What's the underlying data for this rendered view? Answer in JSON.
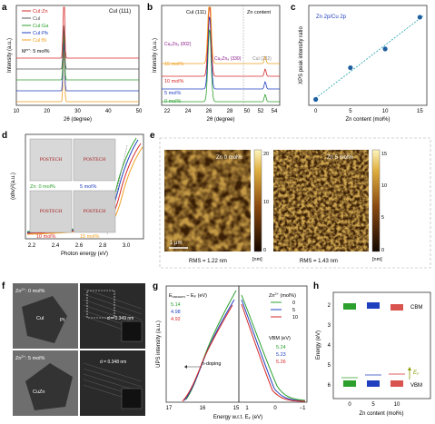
{
  "panel_labels": [
    "a",
    "b",
    "c",
    "d",
    "e",
    "f",
    "g",
    "h"
  ],
  "colors": {
    "zn": "#d62728",
    "cui": "#555555",
    "ga": "#2ca02c",
    "pb": "#1f3fbf",
    "bi": "#f0a020",
    "zero": "#2ca02c",
    "five": "#1f3fbf",
    "ten": "#d62728",
    "fifteen": "#f0a020",
    "afm_dark": "#1a0d00",
    "afm_light": "#f5e6a0",
    "cbm": "#d9534f",
    "vbm": "#d9534f",
    "teal": "#22a0b0"
  },
  "a": {
    "legend": [
      "CuI:Zn",
      "CuI",
      "CuI:Ga",
      "CuI:Pb",
      "CuI:Bi"
    ],
    "note": "M",
    "note_sup": "n+",
    "note_tail": ": 5 mol%",
    "peak_label": "CuI (111)",
    "ylabel": "Intensity (a.u.)",
    "xlabel": "2θ (degree)",
    "xticks": [
      "10",
      "20",
      "30",
      "40",
      "50"
    ]
  },
  "b": {
    "peak_label": "CuI (111)",
    "zn_content": "Zn content",
    "peak_cuzn_a": "Cu₅Zn₈ (002)",
    "peak_cuzn_b": "Cu₅Zn₈ (330)",
    "peak_222": "CuI (222)",
    "series": [
      "15 mol%",
      "10 mol%",
      "5 mol%",
      "0 mol%"
    ],
    "ylabel": "Intensity (a.u.)",
    "xlabel": "2θ (degree)",
    "xticks": [
      "22",
      "24",
      "26",
      "28",
      "50",
      "52",
      "54"
    ]
  },
  "c": {
    "title": "Zn 2p/Cu 2p",
    "ylabel": "XPS peak intensity ratio",
    "xlabel": "Zn content (mol%)",
    "xticks": [
      "0",
      "5",
      "10",
      "15"
    ]
  },
  "chart_data": [
    {
      "type": "scatter",
      "x": [
        0,
        5,
        10,
        15
      ],
      "y": [
        0.0,
        0.27,
        0.43,
        0.7
      ],
      "xlabel": "Zn content (mol%)",
      "ylabel": "XPS peak intensity ratio",
      "xlim": [
        -1,
        16
      ],
      "ylim": [
        -0.05,
        0.8
      ]
    }
  ],
  "d": {
    "ylabel": "(αhν)²",
    "ylabel_unit": "(a.u.)",
    "xlabel": "Photon energy (eV)",
    "xticks": [
      "2.2",
      "2.4",
      "2.6",
      "2.8",
      "3.0"
    ],
    "logo": "POSTECH",
    "zn0": "Zn: 0 mol%",
    "zn5": "5 mol%",
    "zn10": "10 mol%",
    "zn15": "15 mol%"
  },
  "e": {
    "left_title": "Zn 0 mol%",
    "right_title": "Zn 5 mol%",
    "left_rms": "RMS = 1.22 nm",
    "right_rms": "RMS = 1.43 nm",
    "scale": "1 μm",
    "left_cb": [
      "20",
      "10",
      "0"
    ],
    "right_cb": [
      "15",
      "10",
      "5",
      "0"
    ],
    "unit": "[nm]"
  },
  "f": {
    "top_label": "Zn",
    "top_sup": "2+",
    "top_tail": ": 0 mol%",
    "bottom_label": "Zn",
    "bottom_sup": "2+",
    "bottom_tail": ": 5 mol%",
    "cui": "CuI",
    "pt": "Pt",
    "cuzn": "CuZn",
    "d1": "d = 0.349 nm",
    "d2": "d = 0.348 nm"
  },
  "g": {
    "ylabel": "UPS intensity (a.u.)",
    "xlabel": "Energy w.r.t. E",
    "xlabel_sub": "F",
    "xlabel_tail": " (eV)",
    "evac_label": "E",
    "evac_tail": " − E",
    "evac_unit": " (eV)",
    "vac_vals": [
      "5.14",
      "4.98",
      "4.92"
    ],
    "vbm": "VBM (eV)",
    "vbm_vals": [
      "5.24",
      "5.23",
      "5.26"
    ],
    "zn_legend": "Zn",
    "zn_sup": "2+",
    "zn_tail": " (mol%)",
    "series": [
      "0",
      "5",
      "10"
    ],
    "ndoping": "n-doping",
    "xticks_left": [
      "17",
      "16",
      "15"
    ],
    "xticks_right": [
      "1",
      "0",
      "−1"
    ]
  },
  "h": {
    "ylabel": "Energy (eV)",
    "xlabel": "Zn content (mol%)",
    "yticks": [
      "2",
      "3",
      "4",
      "5",
      "6"
    ],
    "xticks": [
      "0",
      "5",
      "10"
    ],
    "cbm": "CBM",
    "vbm": "VBM",
    "ef": "E",
    "ef_sub": "F"
  }
}
